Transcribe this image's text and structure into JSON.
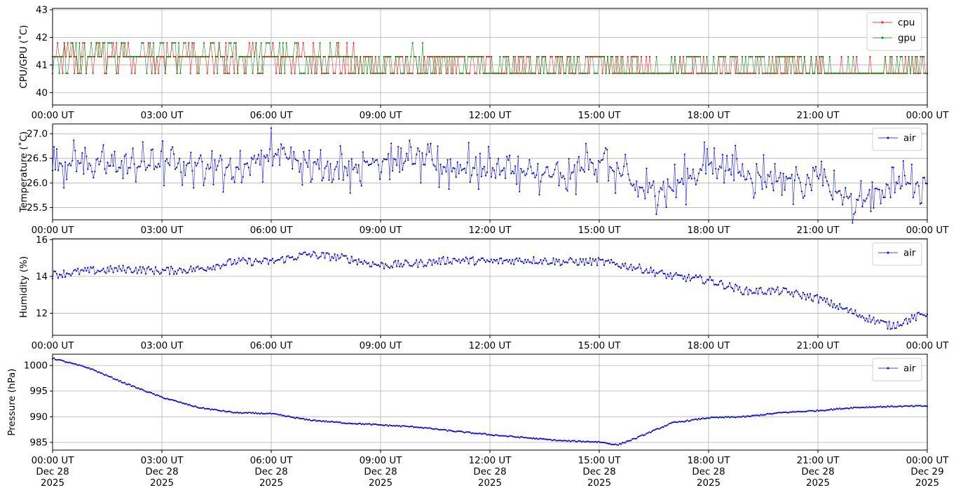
{
  "chart_data": [
    {
      "type": "line",
      "ylabel": "CPU/GPU (˚C)",
      "ylim": [
        39.55,
        43.05
      ],
      "yticks": [
        40,
        41,
        42,
        43
      ],
      "grid": true,
      "legend_position": "top-right",
      "series": [
        {
          "name": "cpu",
          "color": "#ff0000",
          "marker": "dot",
          "x_hours": [
            0,
            1,
            2,
            3,
            4,
            5,
            6,
            7,
            8,
            9,
            10,
            11,
            12,
            13,
            14,
            15,
            16,
            17,
            18,
            19,
            20,
            21,
            22,
            23,
            24
          ],
          "values": [
            41.3,
            41.2,
            41.3,
            41.3,
            41.2,
            41.2,
            41.2,
            41.2,
            41.1,
            41.0,
            41.0,
            41.0,
            41.0,
            40.9,
            40.9,
            40.9,
            40.8,
            40.8,
            40.8,
            40.8,
            40.8,
            40.8,
            40.6,
            40.7,
            40.8
          ]
        },
        {
          "name": "gpu",
          "color": "#008000",
          "marker": "dot",
          "x_hours": [
            0,
            1,
            2,
            3,
            4,
            5,
            6,
            7,
            8,
            9,
            10,
            11,
            12,
            13,
            14,
            15,
            16,
            17,
            18,
            19,
            20,
            21,
            22,
            23,
            24
          ],
          "values": [
            41.2,
            41.3,
            41.4,
            41.3,
            41.3,
            41.3,
            41.3,
            41.2,
            41.1,
            41.1,
            41.1,
            41.1,
            41.0,
            41.0,
            41.0,
            41.0,
            40.7,
            40.8,
            40.9,
            41.0,
            41.0,
            40.9,
            40.5,
            40.7,
            41.0
          ]
        }
      ]
    },
    {
      "type": "line",
      "ylabel": "Temperature (˚C)",
      "ylim": [
        25.25,
        27.2
      ],
      "yticks": [
        25.5,
        26.0,
        26.5,
        27.0
      ],
      "ytick_labels": [
        "25.5",
        "26.0",
        "26.5",
        "27.0"
      ],
      "grid": true,
      "legend_position": "top-right",
      "series": [
        {
          "name": "air",
          "color": "#0000ff",
          "marker": "dot",
          "x_hours": [
            0,
            1,
            2,
            3,
            4,
            5,
            6,
            7,
            8,
            9,
            10,
            11,
            12,
            13,
            14,
            15,
            16,
            17,
            18,
            19,
            20,
            21,
            22,
            23,
            24
          ],
          "values": [
            26.4,
            26.4,
            26.3,
            26.4,
            26.4,
            26.3,
            26.6,
            26.4,
            26.3,
            26.5,
            26.4,
            26.3,
            26.3,
            26.2,
            26.1,
            26.5,
            25.9,
            25.9,
            26.4,
            26.2,
            26.1,
            26.1,
            25.6,
            26.0,
            26.0
          ]
        }
      ]
    },
    {
      "type": "line",
      "ylabel": "Humidity (%)",
      "ylim": [
        10.8,
        16.05
      ],
      "yticks": [
        12,
        14,
        16
      ],
      "grid": true,
      "legend_position": "top-right",
      "series": [
        {
          "name": "air",
          "color": "#0000ff",
          "marker": "dot",
          "x_hours": [
            0,
            1,
            2,
            3,
            4,
            5,
            6,
            7,
            8,
            9,
            10,
            11,
            12,
            13,
            14,
            15,
            16,
            17,
            18,
            19,
            20,
            21,
            22,
            23,
            24
          ],
          "values": [
            14.1,
            14.3,
            14.4,
            14.3,
            14.4,
            14.8,
            14.8,
            15.2,
            15.0,
            14.6,
            14.7,
            14.9,
            14.8,
            14.9,
            14.8,
            14.8,
            14.5,
            14.0,
            13.8,
            13.2,
            13.2,
            12.8,
            12.0,
            11.3,
            12.0
          ]
        }
      ]
    },
    {
      "type": "line",
      "ylabel": "Pressure (hPa)",
      "ylim": [
        983.5,
        1002.2
      ],
      "yticks": [
        985,
        990,
        995,
        1000
      ],
      "grid": true,
      "legend_position": "top-right",
      "series": [
        {
          "name": "air",
          "color": "#0000ff",
          "marker": "dot",
          "x_hours": [
            0,
            1,
            2,
            3,
            4,
            5,
            6,
            7,
            8,
            9,
            10,
            11,
            12,
            13,
            14,
            15,
            15.5,
            16,
            17,
            18,
            19,
            20,
            21,
            22,
            23,
            24
          ],
          "values": [
            1001.4,
            999.5,
            996.5,
            993.8,
            991.8,
            990.8,
            990.6,
            989.4,
            988.8,
            988.4,
            988.0,
            987.2,
            986.5,
            985.9,
            985.3,
            985.1,
            984.5,
            985.8,
            988.8,
            989.8,
            990.0,
            990.8,
            991.2,
            991.8,
            992.0,
            992.1
          ]
        }
      ]
    }
  ],
  "x_axis": {
    "range_hours": [
      0,
      24
    ],
    "tick_hours": [
      0,
      3,
      6,
      9,
      12,
      15,
      18,
      21,
      24
    ],
    "tick_labels": [
      "00:00 UT",
      "03:00 UT",
      "06:00 UT",
      "09:00 UT",
      "12:00 UT",
      "15:00 UT",
      "18:00 UT",
      "21:00 UT",
      "00:00 UT"
    ],
    "date_labels": [
      "Dec 28",
      "Dec 28",
      "Dec 28",
      "Dec 28",
      "Dec 28",
      "Dec 28",
      "Dec 28",
      "Dec 28",
      "Dec 29"
    ],
    "year_labels": [
      "2025",
      "2025",
      "2025",
      "2025",
      "2025",
      "2025",
      "2025",
      "2025",
      "2025"
    ]
  }
}
